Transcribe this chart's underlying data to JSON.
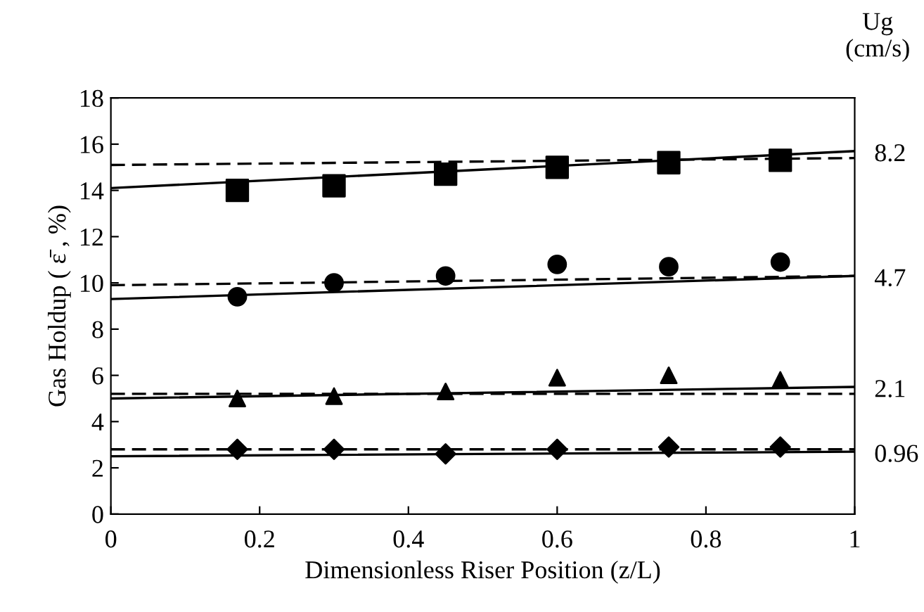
{
  "chart_data": {
    "type": "scatter",
    "xlabel": "Dimensionless Riser Position (z/L)",
    "ylabel": "Gas Holdup ( ε̄ , %)",
    "xlim": [
      0,
      1
    ],
    "xticks": [
      0,
      0.2,
      0.4,
      0.6,
      0.8,
      1
    ],
    "ylim": [
      0,
      18
    ],
    "yticks": [
      0,
      2,
      4,
      6,
      8,
      10,
      12,
      14,
      16,
      18
    ],
    "grid": false,
    "legend": false,
    "series": [
      {
        "marker": "square",
        "color": "#000000",
        "x": [
          0.17,
          0.3,
          0.45,
          0.6,
          0.75,
          0.9
        ],
        "values": [
          14.0,
          14.2,
          14.7,
          15.0,
          15.2,
          15.3
        ]
      },
      {
        "type": "line",
        "name": "8.2",
        "marker": "none",
        "line_style": "solid",
        "color": "#000000",
        "x": [
          0,
          1
        ],
        "values": [
          14.1,
          15.7
        ]
      },
      {
        "type": "line",
        "marker": "none",
        "line_style": "dashed",
        "color": "#000000",
        "x": [
          0,
          1
        ],
        "values": [
          15.1,
          15.4
        ]
      },
      {
        "marker": "circle",
        "color": "#000000",
        "x": [
          0.17,
          0.3,
          0.45,
          0.6,
          0.75,
          0.9
        ],
        "values": [
          9.4,
          10.0,
          10.3,
          10.8,
          10.7,
          10.9
        ]
      },
      {
        "type": "line",
        "name": "4.7",
        "marker": "none",
        "line_style": "solid",
        "color": "#000000",
        "x": [
          0,
          1
        ],
        "values": [
          9.3,
          10.3
        ]
      },
      {
        "type": "line",
        "marker": "none",
        "line_style": "dashed",
        "color": "#000000",
        "x": [
          0,
          1
        ],
        "values": [
          9.9,
          10.3
        ]
      },
      {
        "marker": "triangle",
        "color": "#000000",
        "x": [
          0.17,
          0.3,
          0.45,
          0.6,
          0.75,
          0.9
        ],
        "values": [
          5.0,
          5.1,
          5.3,
          5.9,
          6.0,
          5.8
        ]
      },
      {
        "type": "line",
        "name": "2.1",
        "marker": "none",
        "line_style": "solid",
        "color": "#000000",
        "x": [
          0,
          1
        ],
        "values": [
          5.0,
          5.5
        ]
      },
      {
        "type": "line",
        "marker": "none",
        "line_style": "dashed",
        "color": "#000000",
        "x": [
          0,
          1
        ],
        "values": [
          5.2,
          5.2
        ]
      },
      {
        "marker": "diamond",
        "color": "#000000",
        "x": [
          0.17,
          0.3,
          0.45,
          0.6,
          0.75,
          0.9
        ],
        "values": [
          2.8,
          2.8,
          2.6,
          2.8,
          2.9,
          2.9
        ]
      },
      {
        "type": "line",
        "name": "0.96",
        "marker": "none",
        "line_style": "solid",
        "color": "#000000",
        "x": [
          0,
          1
        ],
        "values": [
          2.5,
          2.7
        ]
      },
      {
        "type": "line",
        "marker": "none",
        "line_style": "dashed",
        "color": "#000000",
        "x": [
          0,
          1
        ],
        "values": [
          2.8,
          2.8
        ]
      }
    ],
    "annotations": [
      "Ug\n(cm/s)"
    ]
  }
}
